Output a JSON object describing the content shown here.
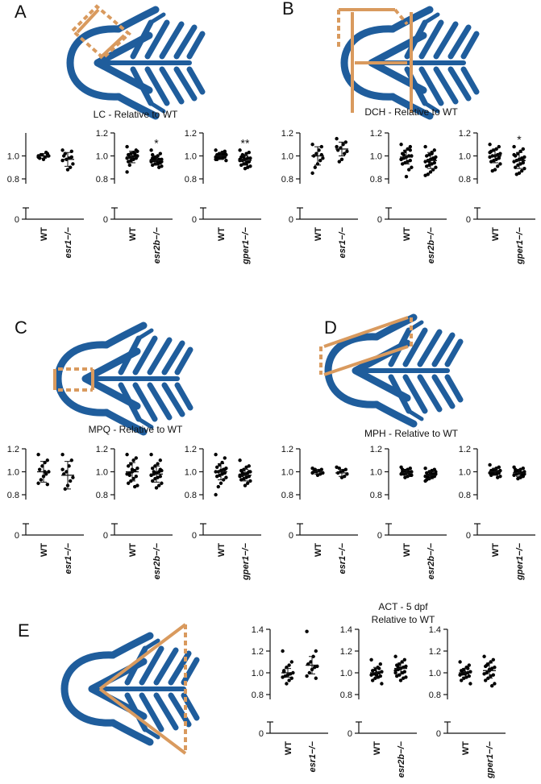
{
  "chart_data": [
    {
      "type": "strip_panel",
      "label": "A",
      "title": "LC - Relative to WT",
      "color": "#000000",
      "charts": [
        {
          "type": "strip",
          "categories": [
            "WT",
            "esr1−/−"
          ],
          "ylim": [
            0.8,
            1.2
          ],
          "yticks": [
            0,
            0.8,
            {
              "value": 1,
              "label": "1.0"
            }
          ],
          "values": [
            [
              1.0,
              1.02,
              0.99,
              1.01,
              0.98,
              1.0,
              1.03,
              0.97,
              1.01,
              0.99,
              1.0
            ],
            [
              1.05,
              1.04,
              0.98,
              0.97,
              1.0,
              0.93,
              0.9,
              0.88,
              1.02,
              0.96,
              0.99
            ]
          ],
          "mean": [
            1.0,
            0.97
          ],
          "sd": [
            0.02,
            0.06
          ]
        },
        {
          "type": "strip",
          "categories": [
            "WT",
            "esr2b−/−"
          ],
          "ylim": [
            0.8,
            1.2
          ],
          "yticks": [
            0,
            0.8,
            {
              "value": 1,
              "label": "1.0"
            },
            1.2
          ],
          "annotation": "*",
          "values": [
            [
              1.08,
              1.05,
              1.03,
              1.02,
              1.01,
              1.0,
              1.0,
              0.99,
              0.99,
              0.98,
              0.98,
              0.97,
              0.96,
              0.95,
              1.04,
              1.02,
              0.97,
              0.92,
              0.86,
              1.0
            ],
            [
              1.05,
              1.02,
              1.0,
              0.99,
              0.98,
              0.97,
              0.97,
              0.96,
              0.96,
              0.95,
              0.95,
              0.94,
              0.93,
              0.92,
              0.91,
              0.9,
              0.99,
              0.98,
              0.96,
              0.94,
              0.93,
              0.97,
              1.01,
              0.95
            ]
          ],
          "mean": [
            0.99,
            0.96
          ],
          "sd": [
            0.05,
            0.04
          ]
        },
        {
          "type": "strip",
          "categories": [
            "WT",
            "gper1−/−"
          ],
          "ylim": [
            0.8,
            1.2
          ],
          "yticks": [
            0,
            0.8,
            {
              "value": 1,
              "label": "1.0"
            },
            1.2
          ],
          "annotation": "**",
          "values": [
            [
              1.05,
              1.04,
              1.03,
              1.02,
              1.01,
              1.01,
              1.0,
              1.0,
              1.0,
              0.99,
              0.99,
              0.98,
              0.98,
              0.97,
              0.96,
              1.02,
              1.0,
              0.99,
              0.97,
              1.03,
              1.01,
              0.98
            ],
            [
              1.05,
              1.03,
              1.02,
              1.0,
              0.99,
              0.98,
              0.98,
              0.97,
              0.96,
              0.96,
              0.95,
              0.94,
              0.93,
              0.92,
              0.91,
              0.9,
              0.89,
              1.01,
              0.97,
              0.95,
              0.93,
              0.99
            ]
          ],
          "mean": [
            1.0,
            0.96
          ],
          "sd": [
            0.03,
            0.04
          ]
        }
      ]
    },
    {
      "type": "strip_panel",
      "label": "B",
      "title": "DCH - Relative to WT",
      "color": "#000000",
      "charts": [
        {
          "type": "strip",
          "categories": [
            "WT",
            "esr1−/−"
          ],
          "ylim": [
            0.8,
            1.2
          ],
          "yticks": [
            0,
            0.8,
            {
              "value": 1,
              "label": "1.0"
            },
            1.2
          ],
          "values": [
            [
              1.1,
              1.08,
              1.05,
              1.02,
              1.0,
              0.98,
              0.96,
              0.93,
              0.9,
              0.85,
              1.01
            ],
            [
              1.15,
              1.12,
              1.1,
              1.07,
              1.05,
              1.04,
              1.02,
              0.97,
              0.95,
              1.08
            ]
          ],
          "mean": [
            1.0,
            1.06
          ],
          "sd": [
            0.08,
            0.06
          ]
        },
        {
          "type": "strip",
          "categories": [
            "WT",
            "esr2b−/−"
          ],
          "ylim": [
            0.8,
            1.2
          ],
          "yticks": [
            0,
            0.8,
            {
              "value": 1,
              "label": "1.0"
            },
            1.2
          ],
          "values": [
            [
              1.1,
              1.08,
              1.06,
              1.04,
              1.02,
              1.0,
              1.0,
              0.99,
              0.98,
              0.97,
              0.96,
              0.95,
              0.94,
              0.93,
              0.9,
              0.88,
              0.82,
              1.01,
              0.97,
              1.05
            ],
            [
              1.08,
              1.05,
              1.03,
              1.01,
              1.0,
              0.99,
              0.98,
              0.97,
              0.96,
              0.95,
              0.94,
              0.93,
              0.92,
              0.91,
              0.9,
              0.88,
              0.86,
              0.84,
              0.83,
              0.97,
              1.02,
              0.95
            ]
          ],
          "mean": [
            0.99,
            0.96
          ],
          "sd": [
            0.06,
            0.07
          ]
        },
        {
          "type": "strip",
          "categories": [
            "WT",
            "gper1−/−"
          ],
          "ylim": [
            0.8,
            1.2
          ],
          "yticks": [
            0,
            0.8,
            {
              "value": 1,
              "label": "1.0"
            },
            1.2
          ],
          "annotation": "*",
          "values": [
            [
              1.1,
              1.08,
              1.06,
              1.05,
              1.04,
              1.02,
              1.01,
              1.0,
              1.0,
              0.99,
              0.98,
              0.97,
              0.96,
              0.95,
              0.93,
              0.91,
              0.88,
              0.87,
              1.03,
              0.99
            ],
            [
              1.08,
              1.06,
              1.04,
              1.02,
              1.0,
              0.99,
              0.98,
              0.97,
              0.96,
              0.95,
              0.94,
              0.93,
              0.92,
              0.9,
              0.89,
              0.87,
              0.85,
              0.84,
              1.01,
              0.96
            ]
          ],
          "mean": [
            1.0,
            0.96
          ],
          "sd": [
            0.06,
            0.07
          ]
        }
      ]
    },
    {
      "type": "strip_panel",
      "label": "C",
      "title": "MPQ - Relative to WT",
      "color": "#000000",
      "charts": [
        {
          "type": "strip",
          "categories": [
            "WT",
            "esr1−/−"
          ],
          "ylim": [
            0.8,
            1.2
          ],
          "yticks": [
            0,
            0.8,
            {
              "value": 1,
              "label": "1.0"
            },
            1.2
          ],
          "values": [
            [
              1.15,
              1.1,
              1.08,
              1.05,
              1.02,
              1.0,
              0.98,
              0.96,
              0.93,
              0.9,
              0.89,
              1.0
            ],
            [
              1.15,
              1.1,
              1.05,
              1.0,
              0.98,
              0.95,
              0.92,
              0.88,
              0.85,
              1.02
            ]
          ],
          "mean": [
            1.0,
            0.97
          ],
          "sd": [
            0.09,
            0.12
          ]
        },
        {
          "type": "strip",
          "categories": [
            "WT",
            "esr2b−/−"
          ],
          "ylim": [
            0.8,
            1.2
          ],
          "yticks": [
            0,
            0.8,
            {
              "value": 1,
              "label": "1.0"
            },
            1.2
          ],
          "values": [
            [
              1.15,
              1.12,
              1.1,
              1.07,
              1.05,
              1.03,
              1.01,
              1.0,
              0.99,
              0.98,
              0.96,
              0.94,
              0.92,
              0.9,
              0.88,
              0.87,
              1.02,
              0.97
            ],
            [
              1.15,
              1.1,
              1.07,
              1.05,
              1.03,
              1.01,
              1.0,
              0.99,
              0.98,
              0.97,
              0.96,
              0.95,
              0.94,
              0.92,
              0.9,
              0.88,
              0.86,
              1.0,
              0.97,
              1.02
            ]
          ],
          "mean": [
            1.0,
            0.98
          ],
          "sd": [
            0.08,
            0.07
          ]
        },
        {
          "type": "strip",
          "categories": [
            "WT",
            "gper1−/−"
          ],
          "ylim": [
            0.8,
            1.2
          ],
          "yticks": [
            0,
            0.8,
            {
              "value": 1,
              "label": "1.0"
            },
            1.2
          ],
          "values": [
            [
              1.15,
              1.12,
              1.08,
              1.06,
              1.04,
              1.03,
              1.02,
              1.01,
              1.0,
              1.0,
              0.99,
              0.98,
              0.97,
              0.96,
              0.95,
              0.93,
              0.9,
              0.87,
              0.8,
              1.02,
              0.98
            ],
            [
              1.1,
              1.05,
              1.04,
              1.02,
              1.01,
              1.0,
              0.99,
              0.98,
              0.97,
              0.97,
              0.96,
              0.95,
              0.94,
              0.93,
              0.92,
              0.9,
              0.88,
              0.99,
              0.96,
              1.0
            ]
          ],
          "mean": [
            1.0,
            0.97
          ],
          "sd": [
            0.07,
            0.05
          ]
        }
      ]
    },
    {
      "type": "strip_panel",
      "label": "D",
      "title": "MPH - Relative to WT",
      "color": "#000000",
      "charts": [
        {
          "type": "strip",
          "categories": [
            "WT",
            "esr1−/−"
          ],
          "ylim": [
            0.8,
            1.2
          ],
          "yticks": [
            0,
            0.8,
            {
              "value": 1,
              "label": "1.0"
            },
            1.2
          ],
          "values": [
            [
              1.03,
              1.02,
              1.01,
              1.0,
              1.0,
              0.99,
              0.98,
              0.97,
              1.02,
              0.99
            ],
            [
              1.04,
              1.02,
              1.01,
              1.0,
              0.99,
              0.98,
              0.96,
              0.95,
              1.03
            ]
          ],
          "mean": [
            1.0,
            0.99
          ],
          "sd": [
            0.02,
            0.03
          ]
        },
        {
          "type": "strip",
          "categories": [
            "WT",
            "esr2b−/−"
          ],
          "ylim": [
            0.8,
            1.2
          ],
          "yticks": [
            0,
            0.8,
            {
              "value": 1,
              "label": "1.0"
            },
            1.2
          ],
          "values": [
            [
              1.04,
              1.03,
              1.02,
              1.01,
              1.0,
              1.0,
              0.99,
              0.99,
              0.98,
              0.98,
              0.97,
              0.96,
              0.95,
              1.02,
              0.97,
              1.0,
              0.99
            ],
            [
              1.03,
              1.02,
              1.01,
              1.0,
              0.99,
              0.98,
              0.98,
              0.97,
              0.97,
              0.96,
              0.96,
              0.95,
              0.94,
              0.93,
              1.0,
              0.97,
              0.99,
              0.95,
              0.92
            ]
          ],
          "mean": [
            0.99,
            0.97
          ],
          "sd": [
            0.02,
            0.03
          ]
        },
        {
          "type": "strip",
          "categories": [
            "WT",
            "gper1−/−"
          ],
          "ylim": [
            0.8,
            1.2
          ],
          "yticks": [
            0,
            0.8,
            {
              "value": 1,
              "label": "1.0"
            },
            1.2
          ],
          "values": [
            [
              1.06,
              1.04,
              1.03,
              1.02,
              1.01,
              1.01,
              1.0,
              1.0,
              1.0,
              0.99,
              0.99,
              0.98,
              0.98,
              0.97,
              0.96,
              0.95,
              1.02,
              0.99
            ],
            [
              1.04,
              1.03,
              1.02,
              1.01,
              1.0,
              1.0,
              0.99,
              0.99,
              0.98,
              0.97,
              0.96,
              0.95,
              0.94,
              1.02,
              0.98,
              0.97,
              1.0
            ]
          ],
          "mean": [
            1.0,
            0.99
          ],
          "sd": [
            0.03,
            0.03
          ]
        }
      ]
    },
    {
      "type": "strip_panel",
      "label": "E",
      "title": "ACT - 5 dpf",
      "subtitle": "Relative to WT",
      "color": "#000000",
      "charts": [
        {
          "type": "strip",
          "categories": [
            "WT",
            "esr1−/−"
          ],
          "ylim": [
            0.8,
            1.4
          ],
          "yticks": [
            0,
            0.8,
            {
              "value": 1,
              "label": "1.0"
            },
            1.2,
            1.4
          ],
          "values": [
            [
              1.2,
              1.1,
              1.07,
              1.05,
              1.02,
              1.0,
              0.99,
              0.98,
              0.97,
              0.96,
              0.95,
              0.93,
              0.9,
              1.01
            ],
            [
              1.38,
              1.2,
              1.15,
              1.1,
              1.08,
              1.06,
              1.05,
              1.03,
              1.0,
              0.97,
              0.95
            ]
          ],
          "mean": [
            1.0,
            1.07
          ],
          "sd": [
            0.04,
            0.08
          ]
        },
        {
          "type": "strip",
          "categories": [
            "WT",
            "esr2b−/−"
          ],
          "ylim": [
            0.8,
            1.4
          ],
          "yticks": [
            0,
            0.8,
            {
              "value": 1,
              "label": "1.0"
            },
            1.2,
            1.4
          ],
          "values": [
            [
              1.12,
              1.08,
              1.05,
              1.03,
              1.02,
              1.01,
              1.0,
              1.0,
              0.99,
              0.98,
              0.97,
              0.96,
              0.95,
              0.93,
              0.9,
              1.04,
              0.98
            ],
            [
              1.15,
              1.12,
              1.1,
              1.08,
              1.07,
              1.06,
              1.05,
              1.04,
              1.03,
              1.02,
              1.01,
              1.0,
              0.98,
              0.97,
              0.96,
              0.95,
              0.93,
              1.05,
              1.0
            ]
          ],
          "mean": [
            1.0,
            1.04
          ],
          "sd": [
            0.05,
            0.05
          ]
        },
        {
          "type": "strip",
          "categories": [
            "WT",
            "gper1−/−"
          ],
          "ylim": [
            0.8,
            1.4
          ],
          "yticks": [
            0,
            0.8,
            {
              "value": 1,
              "label": "1.0"
            },
            1.2,
            1.4
          ],
          "values": [
            [
              1.1,
              1.07,
              1.05,
              1.03,
              1.02,
              1.01,
              1.0,
              1.0,
              0.99,
              0.98,
              0.97,
              0.96,
              0.95,
              0.93,
              0.9,
              1.04,
              0.99,
              1.0
            ],
            [
              1.15,
              1.12,
              1.1,
              1.08,
              1.06,
              1.05,
              1.04,
              1.02,
              1.0,
              0.99,
              0.98,
              0.97,
              0.95,
              0.93,
              0.9,
              0.88,
              1.03,
              1.07
            ]
          ],
          "mean": [
            1.0,
            1.02
          ],
          "sd": [
            0.04,
            0.07
          ]
        }
      ]
    }
  ]
}
